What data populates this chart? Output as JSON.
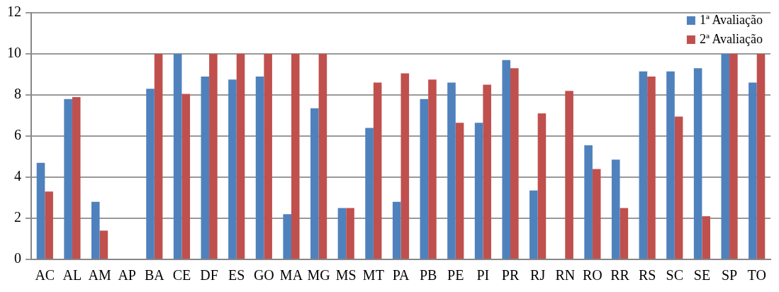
{
  "chart_data": {
    "type": "bar",
    "categories": [
      "AC",
      "AL",
      "AM",
      "AP",
      "BA",
      "CE",
      "DF",
      "ES",
      "GO",
      "MA",
      "MG",
      "MS",
      "MT",
      "PA",
      "PB",
      "PE",
      "PI",
      "PR",
      "RJ",
      "RN",
      "RO",
      "RR",
      "RS",
      "SC",
      "SE",
      "SP",
      "TO"
    ],
    "series": [
      {
        "name": "1ª Avaliação",
        "color": "#4f81bd",
        "values": [
          4.7,
          7.8,
          2.8,
          0,
          8.3,
          10,
          8.9,
          8.75,
          8.9,
          2.2,
          7.35,
          2.5,
          6.4,
          2.8,
          7.8,
          8.6,
          6.65,
          9.7,
          3.35,
          0,
          5.55,
          4.85,
          9.15,
          9.15,
          9.3,
          10,
          8.6
        ]
      },
      {
        "name": "2ª Avaliação",
        "color": "#c0504d",
        "values": [
          3.3,
          7.9,
          1.4,
          0,
          10,
          8.05,
          10,
          10,
          10,
          10,
          10,
          2.5,
          8.6,
          9.05,
          8.75,
          6.65,
          8.5,
          9.3,
          7.1,
          8.2,
          4.4,
          2.5,
          8.9,
          6.95,
          2.1,
          10,
          10
        ]
      }
    ],
    "ylim": [
      0,
      12
    ],
    "yticks": [
      0,
      2,
      4,
      6,
      8,
      10,
      12
    ],
    "grid": "y",
    "legend": "top right"
  }
}
